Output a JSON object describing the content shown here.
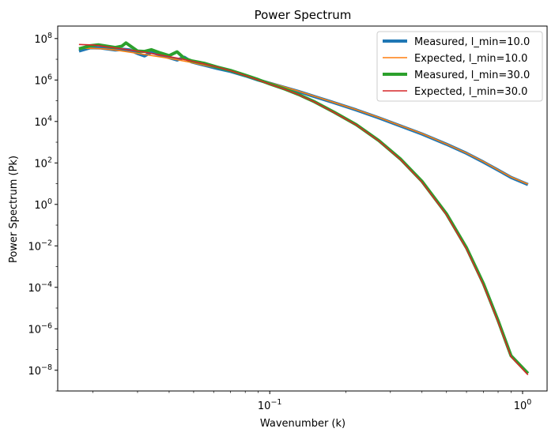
{
  "chart_data": {
    "type": "line",
    "title": "Power Spectrum",
    "xlabel": "Wavenumber (k)",
    "ylabel": "Power Spectrum (Pk)",
    "xscale": "log",
    "yscale": "log",
    "xlim": [
      0.0145,
      1.25
    ],
    "ylim": [
      1e-09,
      400000000.0
    ],
    "grid": false,
    "legend_position": "top-right",
    "x_ticks": [
      {
        "value": 0.1,
        "base": "10",
        "exp": "−1"
      },
      {
        "value": 1.0,
        "base": "10",
        "exp": "0"
      }
    ],
    "y_ticks": [
      {
        "value": 100000000.0,
        "base": "10",
        "exp": "8"
      },
      {
        "value": 1000000.0,
        "base": "10",
        "exp": "6"
      },
      {
        "value": 10000.0,
        "base": "10",
        "exp": "4"
      },
      {
        "value": 100.0,
        "base": "10",
        "exp": "2"
      },
      {
        "value": 1.0,
        "base": "10",
        "exp": "0"
      },
      {
        "value": 0.01,
        "base": "10",
        "exp": "−2"
      },
      {
        "value": 0.0001,
        "base": "10",
        "exp": "−4"
      },
      {
        "value": 1e-06,
        "base": "10",
        "exp": "−6"
      },
      {
        "value": 1e-08,
        "base": "10",
        "exp": "−8"
      }
    ],
    "series": [
      {
        "name": "Measured, l_min=10.0",
        "color": "#1f77b4",
        "width": 4,
        "points": [
          [
            0.0176,
            25000000.0
          ],
          [
            0.0195,
            36000000.0
          ],
          [
            0.0215,
            35000000.0
          ],
          [
            0.0245,
            28000000.0
          ],
          [
            0.0265,
            30000000.0
          ],
          [
            0.028,
            28000000.0
          ],
          [
            0.03,
            19000000.0
          ],
          [
            0.032,
            14500000.0
          ],
          [
            0.034,
            22000000.0
          ],
          [
            0.037,
            16000000.0
          ],
          [
            0.04,
            12000000.0
          ],
          [
            0.043,
            9200000.0
          ],
          [
            0.046,
            12500000.0
          ],
          [
            0.049,
            7500000.0
          ],
          [
            0.055,
            5200000.0
          ],
          [
            0.062,
            3600000.0
          ],
          [
            0.07,
            2600000.0
          ],
          [
            0.08,
            1600000.0
          ],
          [
            0.09,
            1000000.0
          ],
          [
            0.1,
            700000.0
          ],
          [
            0.115,
            430000.0
          ],
          [
            0.13,
            280000.0
          ],
          [
            0.15,
            160000.0
          ],
          [
            0.18,
            80000.0
          ],
          [
            0.22,
            36000.0
          ],
          [
            0.27,
            15000.0
          ],
          [
            0.33,
            6000.0
          ],
          [
            0.4,
            2500.0
          ],
          [
            0.5,
            800
          ],
          [
            0.6,
            290
          ],
          [
            0.7,
            110
          ],
          [
            0.8,
            45
          ],
          [
            0.9,
            20
          ],
          [
            1.05,
            9.0
          ]
        ]
      },
      {
        "name": "Expected, l_min=10.0",
        "color": "#ff7f0e",
        "width": 1.6,
        "points": [
          [
            0.0176,
            33000000.0
          ],
          [
            0.0195,
            34000000.0
          ],
          [
            0.022,
            32000000.0
          ],
          [
            0.025,
            27000000.0
          ],
          [
            0.028,
            22000000.0
          ],
          [
            0.032,
            17000000.0
          ],
          [
            0.037,
            13000000.0
          ],
          [
            0.043,
            9500000.0
          ],
          [
            0.049,
            7000000.0
          ],
          [
            0.055,
            5200000.0
          ],
          [
            0.062,
            3800000.0
          ],
          [
            0.07,
            2700000.0
          ],
          [
            0.08,
            1700000.0
          ],
          [
            0.09,
            1100000.0
          ],
          [
            0.1,
            750000.0
          ],
          [
            0.115,
            450000.0
          ],
          [
            0.13,
            290000.0
          ],
          [
            0.15,
            165000.0
          ],
          [
            0.18,
            82000.0
          ],
          [
            0.22,
            37000.0
          ],
          [
            0.27,
            15500.0
          ],
          [
            0.33,
            6200.0
          ],
          [
            0.4,
            2600.0
          ],
          [
            0.5,
            820
          ],
          [
            0.6,
            300
          ],
          [
            0.7,
            115
          ],
          [
            0.8,
            46
          ],
          [
            0.9,
            21
          ],
          [
            1.05,
            9.5
          ]
        ]
      },
      {
        "name": "Measured, l_min=30.0",
        "color": "#2ca02c",
        "width": 4,
        "points": [
          [
            0.0176,
            32000000.0
          ],
          [
            0.0195,
            45000000.0
          ],
          [
            0.021,
            50000000.0
          ],
          [
            0.0245,
            37000000.0
          ],
          [
            0.026,
            43000000.0
          ],
          [
            0.027,
            62000000.0
          ],
          [
            0.028,
            45000000.0
          ],
          [
            0.03,
            25000000.0
          ],
          [
            0.032,
            24000000.0
          ],
          [
            0.034,
            29000000.0
          ],
          [
            0.037,
            20000000.0
          ],
          [
            0.04,
            15000000.0
          ],
          [
            0.043,
            23000000.0
          ],
          [
            0.046,
            11000000.0
          ],
          [
            0.049,
            8500000.0
          ],
          [
            0.055,
            6400000.0
          ],
          [
            0.062,
            4200000.0
          ],
          [
            0.07,
            2900000.0
          ],
          [
            0.08,
            1700000.0
          ],
          [
            0.09,
            1050000.0
          ],
          [
            0.1,
            650000.0
          ],
          [
            0.115,
            360000.0
          ],
          [
            0.13,
            200000.0
          ],
          [
            0.15,
            90000.0
          ],
          [
            0.18,
            28000.0
          ],
          [
            0.22,
            7000.0
          ],
          [
            0.27,
            1200.0
          ],
          [
            0.33,
            150
          ],
          [
            0.4,
            13
          ],
          [
            0.5,
            0.35
          ],
          [
            0.6,
            0.008
          ],
          [
            0.7,
            0.00015
          ],
          [
            0.8,
            2.5e-06
          ],
          [
            0.9,
            5e-08
          ],
          [
            1.05,
            7e-09
          ]
        ]
      },
      {
        "name": "Expected, l_min=30.0",
        "color": "#d62728",
        "width": 1.6,
        "points": [
          [
            0.0176,
            52000000.0
          ],
          [
            0.02,
            49000000.0
          ],
          [
            0.025,
            34000000.0
          ],
          [
            0.028,
            28000000.0
          ],
          [
            0.032,
            22000000.0
          ],
          [
            0.037,
            16000000.0
          ],
          [
            0.043,
            11500000.0
          ],
          [
            0.049,
            8200000.0
          ],
          [
            0.055,
            6000000.0
          ],
          [
            0.062,
            4200000.0
          ],
          [
            0.07,
            2800000.0
          ],
          [
            0.08,
            1650000.0
          ],
          [
            0.09,
            1000000.0
          ],
          [
            0.1,
            630000.0
          ],
          [
            0.115,
            350000.0
          ],
          [
            0.13,
            195000.0
          ],
          [
            0.15,
            88000.0
          ],
          [
            0.18,
            27000.0
          ],
          [
            0.22,
            6800.0
          ],
          [
            0.27,
            1150.0
          ],
          [
            0.33,
            140
          ],
          [
            0.4,
            12
          ],
          [
            0.5,
            0.32
          ],
          [
            0.6,
            0.007
          ],
          [
            0.7,
            0.00013
          ],
          [
            0.8,
            2.2e-06
          ],
          [
            0.9,
            4.5e-08
          ],
          [
            1.05,
            6e-09
          ]
        ]
      }
    ]
  }
}
